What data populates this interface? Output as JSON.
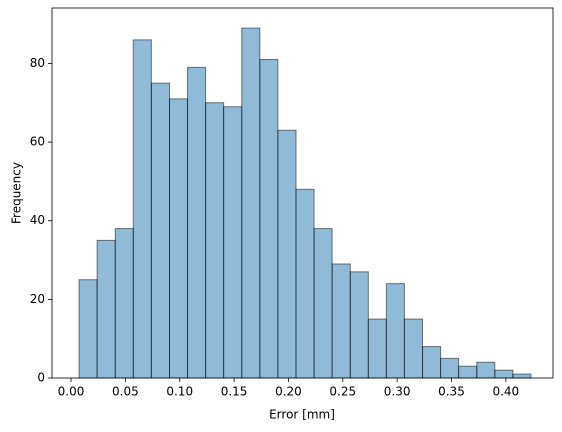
{
  "chart_data": {
    "type": "histogram",
    "xlabel": "Error [mm]",
    "ylabel": "Frequency",
    "bins": [
      0.0074,
      0.024,
      0.0407,
      0.0573,
      0.0739,
      0.0906,
      0.1072,
      0.1238,
      0.1404,
      0.1571,
      0.1737,
      0.1903,
      0.207,
      0.2236,
      0.2402,
      0.2569,
      0.2735,
      0.2901,
      0.3067,
      0.3234,
      0.34,
      0.3566,
      0.3733,
      0.3899,
      0.4065,
      0.4232
    ],
    "values": [
      25,
      35,
      38,
      86,
      75,
      71,
      79,
      70,
      69,
      89,
      81,
      63,
      48,
      38,
      29,
      27,
      15,
      24,
      15,
      8,
      5,
      3,
      4,
      2,
      1
    ],
    "color": "#1f77b4",
    "alpha": 0.5,
    "edgecolor": "#000000",
    "xlim": [
      -0.0175,
      0.4434
    ],
    "ylim": [
      0,
      94.1
    ],
    "xticks": [
      {
        "value": 0,
        "label": "0.00"
      },
      0.05,
      {
        "value": 0.1,
        "label": "0.10"
      },
      0.15,
      {
        "value": 0.2,
        "label": "0.20"
      },
      0.25,
      {
        "value": 0.3,
        "label": "0.30"
      },
      0.35,
      {
        "value": 0.4,
        "label": "0.40"
      }
    ],
    "yticks": [
      0,
      20,
      40,
      60,
      80
    ],
    "grid": false
  }
}
